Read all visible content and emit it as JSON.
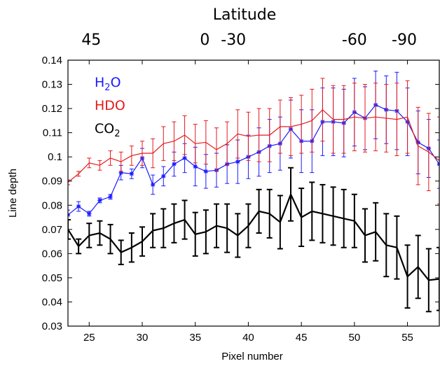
{
  "chart_data": {
    "type": "line",
    "top_axis": {
      "title": "Latitude",
      "ticks": [
        {
          "label": "45",
          "pixel": 25.2
        },
        {
          "label": "0",
          "pixel": 35.9
        },
        {
          "label": "-30",
          "pixel": 38.6
        },
        {
          "label": "-60",
          "pixel": 50.0
        },
        {
          "label": "-90",
          "pixel": 54.7
        }
      ]
    },
    "xlabel": "Pixel number",
    "ylabel": "Line depth",
    "xlim": [
      23,
      58
    ],
    "ylim": [
      0.03,
      0.14
    ],
    "xticks": [
      "25",
      "30",
      "35",
      "40",
      "45",
      "50",
      "55"
    ],
    "xtick_values": [
      25,
      30,
      35,
      40,
      45,
      50,
      55
    ],
    "yticks": [
      "0.03",
      "0.04",
      "0.05",
      "0.06",
      "0.07",
      "0.08",
      "0.09",
      "0.1",
      "0.11",
      "0.12",
      "0.13",
      "0.14"
    ],
    "ytick_values": [
      0.03,
      0.04,
      0.05,
      0.06,
      0.07,
      0.08,
      0.09,
      0.1,
      0.11,
      0.12,
      0.13,
      0.14
    ],
    "grid": false,
    "legend_position": "top-left",
    "series": [
      {
        "name": "H2O",
        "legend_main": "H",
        "legend_sub": "2",
        "legend_tail": "O",
        "color": "#1a1aff",
        "marker": "star",
        "line_width": 1.2,
        "x": [
          23,
          24,
          25,
          26,
          27,
          28,
          29,
          30,
          31,
          32,
          33,
          34,
          35,
          36,
          37,
          38,
          39,
          40,
          41,
          42,
          43,
          44,
          45,
          46,
          47,
          48,
          49,
          50,
          51,
          52,
          53,
          54,
          55,
          56,
          57,
          58
        ],
        "y": [
          0.076,
          0.0795,
          0.0765,
          0.082,
          0.0835,
          0.0935,
          0.093,
          0.0995,
          0.0885,
          0.092,
          0.097,
          0.0995,
          0.096,
          0.094,
          0.0945,
          0.097,
          0.098,
          0.1,
          0.102,
          0.1045,
          0.1055,
          0.1115,
          0.1065,
          0.1065,
          0.1145,
          0.1145,
          0.114,
          0.1185,
          0.116,
          0.1215,
          0.1195,
          0.119,
          0.1145,
          0.106,
          0.1035,
          0.097
        ],
        "err": [
          0.002,
          0.002,
          0.001,
          0.001,
          0.001,
          0.003,
          0.002,
          0.004,
          0.004,
          0.004,
          0.005,
          0.006,
          0.008,
          0.007,
          0.007,
          0.008,
          0.009,
          0.009,
          0.01,
          0.011,
          0.011,
          0.012,
          0.013,
          0.013,
          0.014,
          0.014,
          0.014,
          0.014,
          0.013,
          0.014,
          0.014,
          0.016,
          0.014,
          0.013,
          0.012,
          0.01
        ]
      },
      {
        "name": "HDO",
        "legend_main": "HDO",
        "color": "#e41a1c",
        "marker": "none",
        "line_width": 1.2,
        "x": [
          23,
          24,
          25,
          26,
          27,
          28,
          29,
          30,
          31,
          32,
          33,
          34,
          35,
          36,
          37,
          38,
          39,
          40,
          41,
          42,
          43,
          44,
          45,
          46,
          47,
          48,
          49,
          50,
          51,
          52,
          53,
          54,
          55,
          56,
          57,
          58
        ],
        "y": [
          0.0895,
          0.093,
          0.0975,
          0.0965,
          0.0995,
          0.098,
          0.1005,
          0.1015,
          0.1015,
          0.1055,
          0.1065,
          0.109,
          0.1055,
          0.106,
          0.103,
          0.1055,
          0.1095,
          0.1085,
          0.109,
          0.109,
          0.1125,
          0.1125,
          0.1135,
          0.115,
          0.1195,
          0.1155,
          0.1155,
          0.1165,
          0.116,
          0.1165,
          0.116,
          0.1155,
          0.1165,
          0.1045,
          0.102,
          0.0985
        ],
        "err": [
          0.001,
          0.001,
          0.002,
          0.002,
          0.003,
          0.004,
          0.004,
          0.005,
          0.006,
          0.007,
          0.008,
          0.008,
          0.008,
          0.009,
          0.009,
          0.009,
          0.01,
          0.01,
          0.011,
          0.011,
          0.011,
          0.012,
          0.012,
          0.013,
          0.013,
          0.014,
          0.014,
          0.014,
          0.014,
          0.014,
          0.014,
          0.015,
          0.015,
          0.016,
          0.016,
          0.018
        ]
      },
      {
        "name": "CO2",
        "legend_main": "CO",
        "legend_sub": "2",
        "legend_tail": "",
        "color": "#000000",
        "marker": "none",
        "line_width": 2.2,
        "x": [
          23,
          24,
          25,
          26,
          27,
          28,
          29,
          30,
          31,
          32,
          33,
          34,
          35,
          36,
          37,
          38,
          39,
          40,
          41,
          42,
          43,
          44,
          45,
          46,
          47,
          48,
          49,
          50,
          51,
          52,
          53,
          54,
          55,
          56,
          57,
          58
        ],
        "y": [
          0.07,
          0.063,
          0.0675,
          0.0685,
          0.066,
          0.0605,
          0.0625,
          0.065,
          0.0695,
          0.0705,
          0.0725,
          0.074,
          0.068,
          0.069,
          0.0715,
          0.0705,
          0.0675,
          0.0715,
          0.0775,
          0.0765,
          0.073,
          0.0845,
          0.075,
          0.0775,
          0.0765,
          0.0755,
          0.0745,
          0.0735,
          0.0675,
          0.069,
          0.0635,
          0.0625,
          0.0505,
          0.0545,
          0.049,
          0.0495
        ],
        "err": [
          0.004,
          0.003,
          0.005,
          0.005,
          0.006,
          0.005,
          0.006,
          0.006,
          0.007,
          0.008,
          0.008,
          0.008,
          0.009,
          0.009,
          0.009,
          0.01,
          0.009,
          0.009,
          0.009,
          0.01,
          0.011,
          0.011,
          0.012,
          0.012,
          0.012,
          0.012,
          0.012,
          0.011,
          0.011,
          0.012,
          0.013,
          0.013,
          0.013,
          0.013,
          0.013,
          0.013
        ]
      }
    ]
  }
}
